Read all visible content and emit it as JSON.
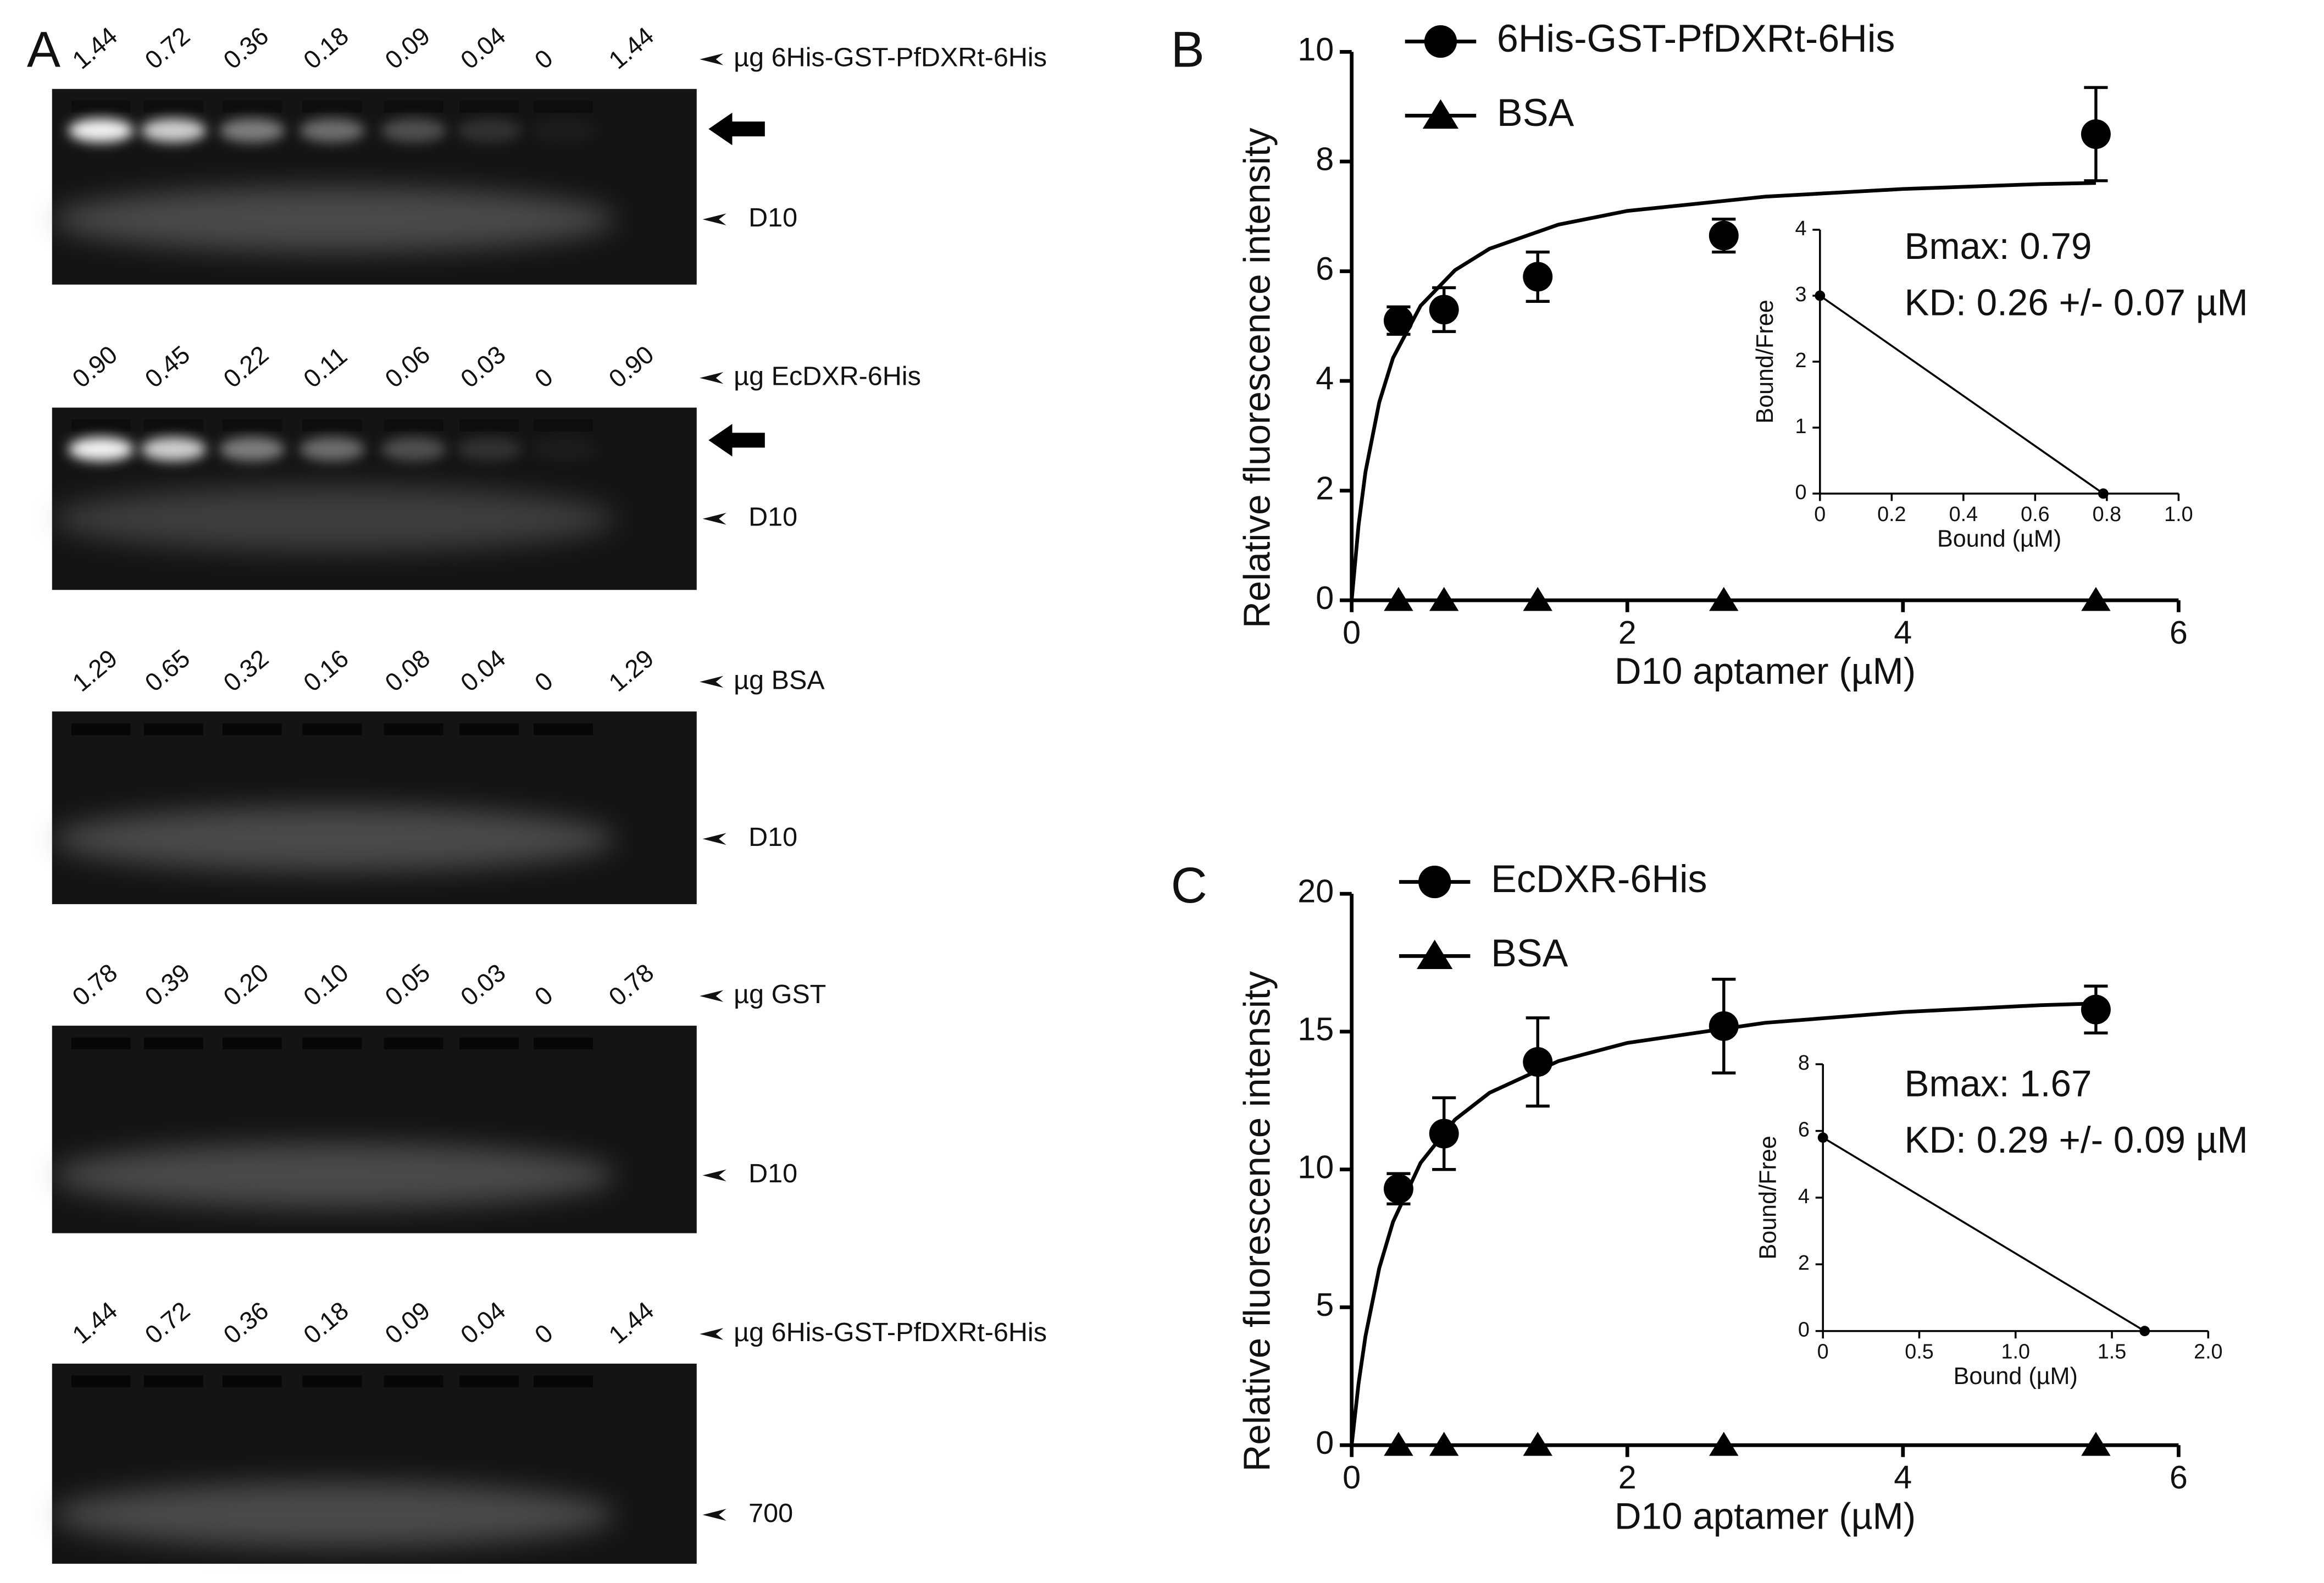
{
  "panel_labels": [
    "A",
    "B",
    "C"
  ],
  "gels": [
    {
      "lanes": [
        "1.44",
        "0.72",
        "0.36",
        "0.18",
        "0.09",
        "0.04",
        "0",
        "1.44"
      ],
      "label": "µg 6His-GST-PfDXRt-6His",
      "band": "D10"
    },
    {
      "lanes": [
        "0.90",
        "0.45",
        "0.22",
        "0.11",
        "0.06",
        "0.03",
        "0",
        "0.90"
      ],
      "label": "µg EcDXR-6His",
      "band": "D10"
    },
    {
      "lanes": [
        "1.29",
        "0.65",
        "0.32",
        "0.16",
        "0.08",
        "0.04",
        "0",
        "1.29"
      ],
      "label": "µg BSA",
      "band": "D10"
    },
    {
      "lanes": [
        "0.78",
        "0.39",
        "0.20",
        "0.10",
        "0.05",
        "0.03",
        "0",
        "0.78"
      ],
      "label": "µg GST",
      "band": "D10"
    },
    {
      "lanes": [
        "1.44",
        "0.72",
        "0.36",
        "0.18",
        "0.09",
        "0.04",
        "0",
        "1.44"
      ],
      "label": "µg 6His-GST-PfDXRt-6His",
      "band": "700"
    }
  ],
  "chart_data": [
    {
      "type": "scatter",
      "xlabel": "D10 aptamer (µM)",
      "ylabel": "Relative fluorescence intensity",
      "xlim": [
        0,
        6
      ],
      "ylim": [
        0,
        10
      ],
      "xticks": [
        0,
        2,
        4,
        6
      ],
      "yticks": [
        0,
        2,
        4,
        6,
        8,
        10
      ],
      "x": [
        0.34,
        0.67,
        1.35,
        2.7,
        5.4
      ],
      "series": [
        {
          "name": "6His-GST-PfDXRt-6His",
          "color": "#000000",
          "marker": "circle",
          "values": [
            5.1,
            5.3,
            5.9,
            6.65,
            8.5
          ],
          "errors": [
            0.25,
            0.4,
            0.45,
            0.3,
            0.85
          ]
        },
        {
          "name": "BSA",
          "color": "#000000",
          "marker": "triangle",
          "values": [
            0,
            0,
            0,
            0,
            0
          ]
        }
      ],
      "fit": {
        "x": [
          0,
          0.05,
          0.1,
          0.2,
          0.3,
          0.5,
          0.75,
          1,
          1.5,
          2,
          3,
          4,
          5,
          5.4
        ],
        "values": [
          0,
          1.37,
          2.34,
          3.61,
          4.42,
          5.37,
          6.02,
          6.41,
          6.85,
          7.1,
          7.36,
          7.5,
          7.59,
          7.61
        ]
      },
      "annotations": [
        "Bmax: 0.79",
        "KD: 0.26 +/- 0.07 µM"
      ]
    },
    {
      "type": "line",
      "xlabel": "Bound (µM)",
      "ylabel": "Bound/Free",
      "xlim": [
        0,
        1
      ],
      "ylim": [
        0,
        4
      ],
      "xticks": [
        0,
        0.2,
        0.4,
        0.6,
        0.8,
        {
          "value": 1,
          "label": "1.0"
        }
      ],
      "yticks": [
        0,
        1,
        2,
        3,
        4
      ],
      "x": [
        0,
        0.79
      ],
      "series": [
        {
          "color": "#000000",
          "values": [
            3,
            0
          ]
        }
      ]
    },
    {
      "type": "scatter",
      "xlabel": "D10 aptamer (µM)",
      "ylabel": "Relative fluorescence intensity",
      "xlim": [
        0,
        6
      ],
      "ylim": [
        0,
        20
      ],
      "xticks": [
        0,
        2,
        4,
        6
      ],
      "yticks": [
        0,
        5,
        10,
        15,
        20
      ],
      "x": [
        0.34,
        0.67,
        1.35,
        2.7,
        5.4
      ],
      "series": [
        {
          "name": "EcDXR-6His",
          "color": "#000000",
          "marker": "circle",
          "values": [
            9.3,
            11.3,
            13.9,
            15.2,
            15.8
          ],
          "errors": [
            0.55,
            1.3,
            1.6,
            1.7,
            0.85
          ]
        },
        {
          "name": "BSA",
          "color": "#000000",
          "marker": "triangle",
          "values": [
            0,
            0,
            0,
            0,
            0
          ]
        }
      ],
      "fit": {
        "x": [
          0,
          0.05,
          0.1,
          0.2,
          0.3,
          0.5,
          0.75,
          1,
          1.5,
          2,
          3,
          4,
          5,
          5.4
        ],
        "values": [
          0,
          2.24,
          3.95,
          6.42,
          8.1,
          10.24,
          11.81,
          12.78,
          13.93,
          14.59,
          15.32,
          15.71,
          15.96,
          16.02
        ]
      },
      "annotations": [
        "Bmax: 1.67",
        "KD: 0.29 +/- 0.09 µM"
      ]
    },
    {
      "type": "line",
      "xlabel": "Bound (µM)",
      "ylabel": "Bound/Free",
      "xlim": [
        0,
        2
      ],
      "ylim": [
        0,
        8
      ],
      "xticks": [
        0,
        0.5,
        {
          "value": 1,
          "label": "1.0"
        },
        1.5,
        {
          "value": 2,
          "label": "2.0"
        }
      ],
      "yticks": [
        0,
        2,
        4,
        6,
        8
      ],
      "x": [
        0,
        1.67
      ],
      "series": [
        {
          "color": "#000000",
          "values": [
            5.8,
            0
          ]
        }
      ]
    }
  ]
}
